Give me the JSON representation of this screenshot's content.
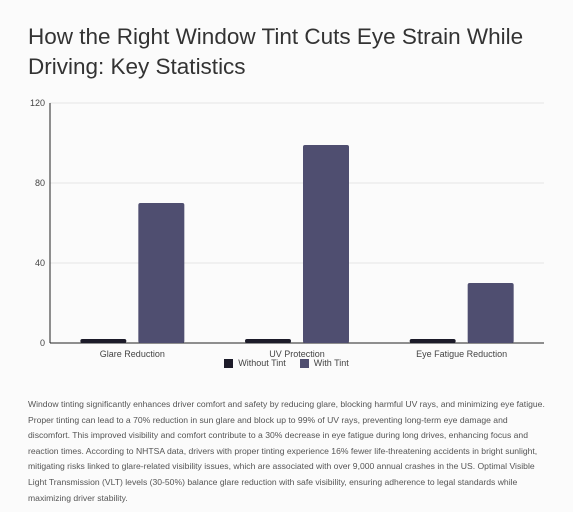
{
  "title": "How the Right Window Tint Cuts Eye Strain While Driving: Key Statistics",
  "chart_data": {
    "type": "bar",
    "categories": [
      "Glare Reduction",
      "UV Protection",
      "Eye Fatigue Reduction"
    ],
    "series": [
      {
        "name": "Without Tint",
        "values": [
          2,
          2,
          2
        ],
        "color": "#1c1b29"
      },
      {
        "name": "With Tint",
        "values": [
          70,
          99,
          30
        ],
        "color": "#4f4e70"
      }
    ],
    "ylim": [
      0,
      120
    ],
    "yticks": [
      "0",
      "40",
      "80",
      "120"
    ],
    "grid": true,
    "legend_position": "bottom"
  },
  "description": "Window tinting significantly enhances driver comfort and safety by reducing glare, blocking harmful UV rays, and minimizing eye fatigue. Proper tinting can lead to a 70% reduction in sun glare and block up to 99% of UV rays, preventing long-term eye damage and discomfort. This improved visibility and comfort contribute to a 30% decrease in eye fatigue during long drives, enhancing focus and reaction times. According to NHTSA data, drivers with proper tinting experience 16% fewer life-threatening accidents in bright sunlight, mitigating risks linked to glare-related visibility issues, which are associated with over 9,000 annual crashes in the US. Optimal Visible Light Transmission (VLT) levels (30-50%) balance glare reduction with safe visibility, ensuring adherence to legal standards while maximizing driver stability."
}
